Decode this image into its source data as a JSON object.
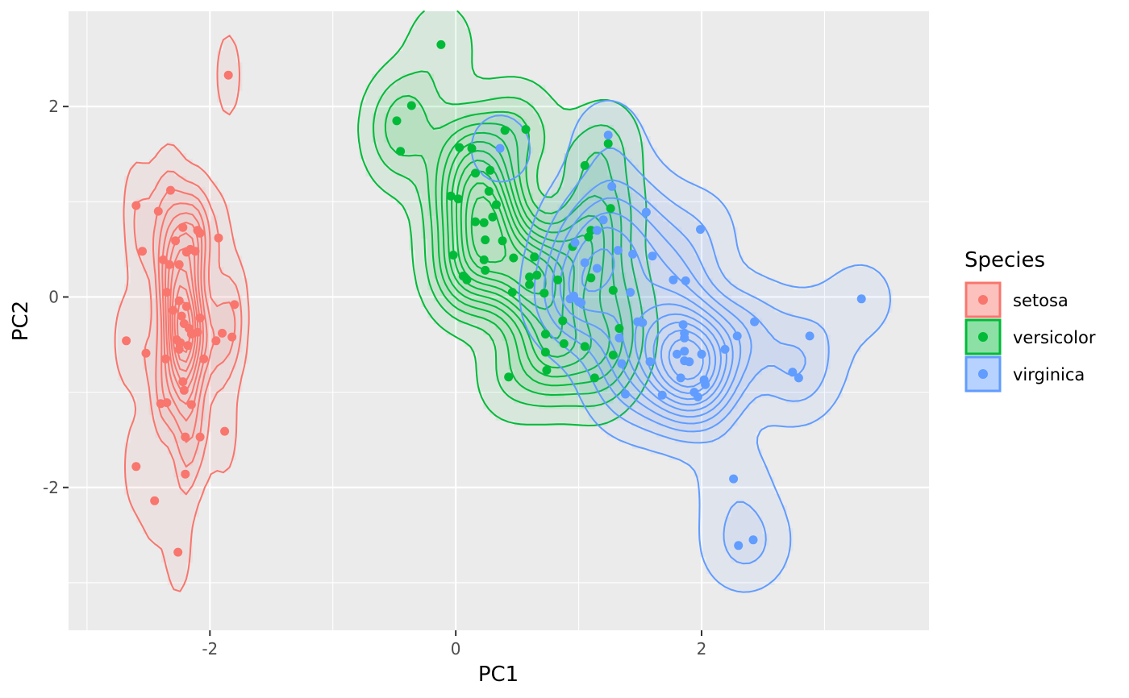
{
  "chart_data": {
    "type": "scatter",
    "title": "",
    "xlabel": "PC1",
    "ylabel": "PC2",
    "xlim": [
      -3.15,
      3.85
    ],
    "ylim": [
      -3.5,
      3.0
    ],
    "x_ticks": [
      -2,
      0,
      2
    ],
    "x_tick_labels": [
      "-2",
      "0",
      "2"
    ],
    "y_ticks": [
      -2,
      0,
      2
    ],
    "y_tick_labels": [
      "-2",
      "0",
      "2"
    ],
    "grid": true,
    "legend": {
      "title": "Species",
      "position": "right"
    },
    "overlay": "2d-density-contours-filled",
    "series": [
      {
        "name": "setosa",
        "color": "#F8766D",
        "points": [
          [
            -2.68,
            -0.46
          ],
          [
            -2.6,
            0.96
          ],
          [
            -2.55,
            0.48
          ],
          [
            -2.6,
            -1.78
          ],
          [
            -2.52,
            -0.59
          ],
          [
            -2.45,
            -2.14
          ],
          [
            -2.42,
            0.9
          ],
          [
            -2.38,
            0.39
          ],
          [
            -2.36,
            -0.65
          ],
          [
            -2.35,
            -1.11
          ],
          [
            -2.33,
            0.34
          ],
          [
            -2.32,
            1.12
          ],
          [
            -2.3,
            -0.14
          ],
          [
            -2.28,
            0.59
          ],
          [
            -2.27,
            -0.45
          ],
          [
            -2.26,
            -2.68
          ],
          [
            -2.25,
            0.34
          ],
          [
            -2.25,
            -0.04
          ],
          [
            -2.24,
            -0.48
          ],
          [
            -2.23,
            -0.2
          ],
          [
            -2.22,
            -0.89
          ],
          [
            -2.22,
            0.73
          ],
          [
            -2.21,
            -0.98
          ],
          [
            -2.21,
            -0.28
          ],
          [
            -2.2,
            -1.47
          ],
          [
            -2.2,
            -1.86
          ],
          [
            -2.19,
            0.47
          ],
          [
            -2.19,
            -0.1
          ],
          [
            -2.18,
            -0.51
          ],
          [
            -2.17,
            -0.33
          ],
          [
            -2.16,
            0.5
          ],
          [
            -2.15,
            -1.13
          ],
          [
            -2.15,
            -0.39
          ],
          [
            -2.12,
            0.48
          ],
          [
            -2.1,
            0.7
          ],
          [
            -2.08,
            -0.22
          ],
          [
            -2.08,
            0.67
          ],
          [
            -2.08,
            -1.47
          ],
          [
            -2.05,
            -0.65
          ],
          [
            -1.95,
            -0.46
          ],
          [
            -1.93,
            0.62
          ],
          [
            -1.9,
            -0.38
          ],
          [
            -1.88,
            -1.41
          ],
          [
            -1.82,
            -0.42
          ],
          [
            -1.8,
            -0.08
          ],
          [
            -1.85,
            2.33
          ],
          [
            -2.4,
            -1.12
          ],
          [
            -2.25,
            -0.55
          ],
          [
            -2.1,
            -0.37
          ],
          [
            -2.35,
            0.05
          ]
        ]
      },
      {
        "name": "versicolor",
        "color": "#00BA38",
        "points": [
          [
            -0.48,
            1.85
          ],
          [
            -0.45,
            1.53
          ],
          [
            -0.36,
            2.01
          ],
          [
            -0.12,
            2.65
          ],
          [
            -0.04,
            1.06
          ],
          [
            -0.02,
            0.44
          ],
          [
            0.02,
            1.03
          ],
          [
            0.03,
            1.57
          ],
          [
            0.06,
            0.22
          ],
          [
            0.09,
            0.18
          ],
          [
            0.13,
            1.56
          ],
          [
            0.16,
            0.79
          ],
          [
            0.16,
            1.3
          ],
          [
            0.23,
            0.78
          ],
          [
            0.23,
            0.39
          ],
          [
            0.24,
            0.28
          ],
          [
            0.24,
            0.6
          ],
          [
            0.27,
            1.11
          ],
          [
            0.28,
            1.33
          ],
          [
            0.3,
            0.84
          ],
          [
            0.33,
            0.97
          ],
          [
            0.38,
            0.59
          ],
          [
            0.4,
            1.75
          ],
          [
            0.43,
            -0.84
          ],
          [
            0.46,
            0.05
          ],
          [
            0.47,
            0.41
          ],
          [
            0.57,
            1.76
          ],
          [
            0.6,
            0.21
          ],
          [
            0.64,
            0.42
          ],
          [
            0.66,
            0.23
          ],
          [
            0.72,
            0.04
          ],
          [
            0.73,
            -0.39
          ],
          [
            0.73,
            -0.58
          ],
          [
            0.74,
            -0.77
          ],
          [
            0.83,
            0.18
          ],
          [
            0.87,
            -0.25
          ],
          [
            0.88,
            -0.49
          ],
          [
            1.05,
            -0.52
          ],
          [
            1.05,
            1.38
          ],
          [
            1.08,
            0.63
          ],
          [
            1.1,
            0.2
          ],
          [
            1.13,
            -0.85
          ],
          [
            1.24,
            1.61
          ],
          [
            1.26,
            0.93
          ],
          [
            1.28,
            0.07
          ],
          [
            1.28,
            -0.61
          ],
          [
            1.33,
            -0.33
          ],
          [
            0.6,
            0.13
          ],
          [
            0.95,
            0.53
          ],
          [
            1.1,
            0.7
          ]
        ]
      },
      {
        "name": "virginica",
        "color": "#619CFF",
        "points": [
          [
            0.36,
            1.56
          ],
          [
            0.93,
            -0.02
          ],
          [
            0.96,
            0.01
          ],
          [
            0.97,
            0.57
          ],
          [
            1.0,
            -0.05
          ],
          [
            1.02,
            -0.06
          ],
          [
            1.05,
            0.36
          ],
          [
            1.15,
            0.3
          ],
          [
            1.15,
            0.7
          ],
          [
            1.2,
            0.81
          ],
          [
            1.24,
            1.7
          ],
          [
            1.27,
            1.16
          ],
          [
            1.32,
            0.49
          ],
          [
            1.33,
            -0.43
          ],
          [
            1.35,
            -0.7
          ],
          [
            1.38,
            -1.02
          ],
          [
            1.42,
            0.05
          ],
          [
            1.44,
            0.45
          ],
          [
            1.48,
            -0.26
          ],
          [
            1.52,
            -0.27
          ],
          [
            1.55,
            0.89
          ],
          [
            1.58,
            -0.68
          ],
          [
            1.6,
            0.43
          ],
          [
            1.68,
            -1.03
          ],
          [
            1.77,
            0.18
          ],
          [
            1.83,
            -0.85
          ],
          [
            1.85,
            -0.29
          ],
          [
            1.86,
            -0.38
          ],
          [
            1.86,
            -0.43
          ],
          [
            1.86,
            -0.57
          ],
          [
            1.86,
            -0.67
          ],
          [
            1.87,
            0.17
          ],
          [
            1.9,
            -0.68
          ],
          [
            1.94,
            -1.0
          ],
          [
            1.97,
            -1.05
          ],
          [
            1.99,
            0.71
          ],
          [
            2.0,
            -0.6
          ],
          [
            2.02,
            -0.87
          ],
          [
            2.03,
            -0.92
          ],
          [
            2.19,
            -0.55
          ],
          [
            2.26,
            -1.91
          ],
          [
            2.29,
            -0.41
          ],
          [
            2.3,
            -2.61
          ],
          [
            2.42,
            -2.55
          ],
          [
            2.43,
            -0.26
          ],
          [
            2.74,
            -0.79
          ],
          [
            2.79,
            -0.85
          ],
          [
            2.88,
            -0.41
          ],
          [
            3.3,
            -0.02
          ],
          [
            1.8,
            -0.6
          ]
        ]
      }
    ]
  }
}
